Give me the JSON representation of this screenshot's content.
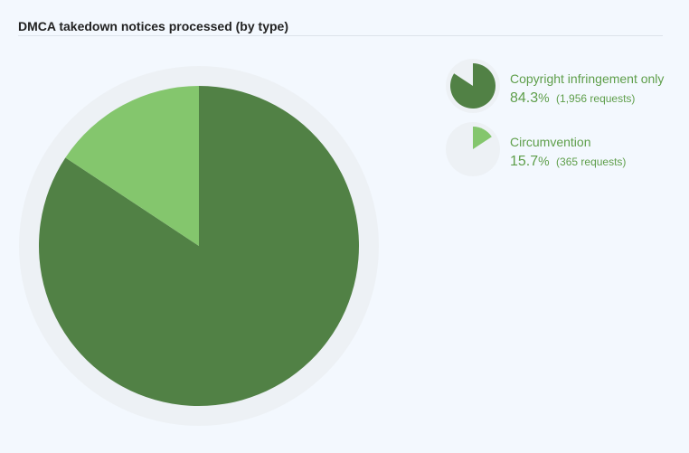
{
  "chart_data": {
    "type": "pie",
    "title": "DMCA takedown notices processed (by type)",
    "slices": [
      {
        "label": "Copyright infringement only",
        "percent": 84.3,
        "percent_text": "84.3",
        "count_text": "(1,956 requests)",
        "value": 1956,
        "color": "#518145"
      },
      {
        "label": "Circumvention",
        "percent": 15.7,
        "percent_text": "15.7",
        "count_text": "(365 requests)",
        "value": 365,
        "color": "#84c66d"
      }
    ],
    "percent_sign": "%",
    "legend_position": "right"
  },
  "colors": {
    "ring": "#edf1f5",
    "legend_text": "#5e9e4a"
  }
}
